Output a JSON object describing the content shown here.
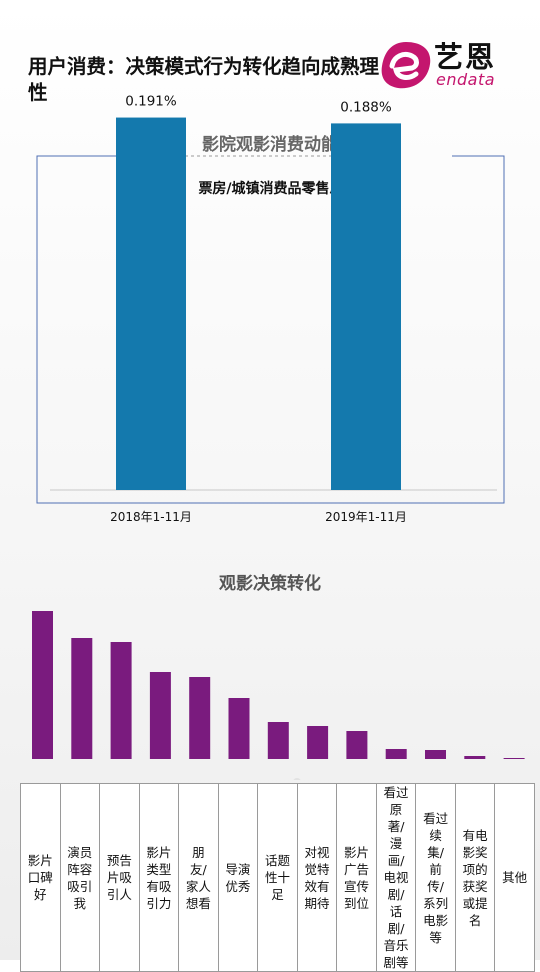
{
  "header": {
    "title": "用户消费：决策模式行为转化趋向成熟理性",
    "logo_cn": "艺恩",
    "logo_en": "endata"
  },
  "section1": {
    "title": "影院观影消费动能"
  },
  "section2": {
    "title": "观影决策转化"
  },
  "colors": {
    "bar_blue": "#1479ad",
    "bar_purple": "#7a1b7e",
    "logo_magenta": "#c4166e",
    "frame_blue": "#4f6fb3"
  },
  "chart_data": [
    {
      "type": "bar",
      "title": "票房/城镇消费品零售总额",
      "categories": [
        "2018年1-11月",
        "2019年1-11月"
      ],
      "values": [
        0.191,
        0.188
      ],
      "value_labels": [
        "0.191%",
        "0.188%"
      ],
      "unit": "%",
      "ylim": [
        0,
        0.2
      ],
      "grid": false,
      "legend": "none"
    },
    {
      "type": "bar",
      "categories": [
        "影片口碑好",
        "演员阵容吸引我",
        "预告片吸引人",
        "影片类型有吸引力",
        "朋友/家人想看",
        "导演优秀",
        "话题性十足",
        "对视觉特效有期待",
        "影片广告宣传到位",
        "看过原著/漫画/电视剧/话剧/音乐剧等",
        "看过续集/前传/系列电影等",
        "有电影奖项的获奖或提名",
        "其他"
      ],
      "values": [
        148,
        121,
        117,
        87,
        82,
        61,
        37,
        33,
        28,
        10,
        9,
        3,
        1
      ],
      "ylim": [
        0,
        150
      ],
      "axis_labels_shown": false,
      "grid": false,
      "legend": "none"
    }
  ]
}
